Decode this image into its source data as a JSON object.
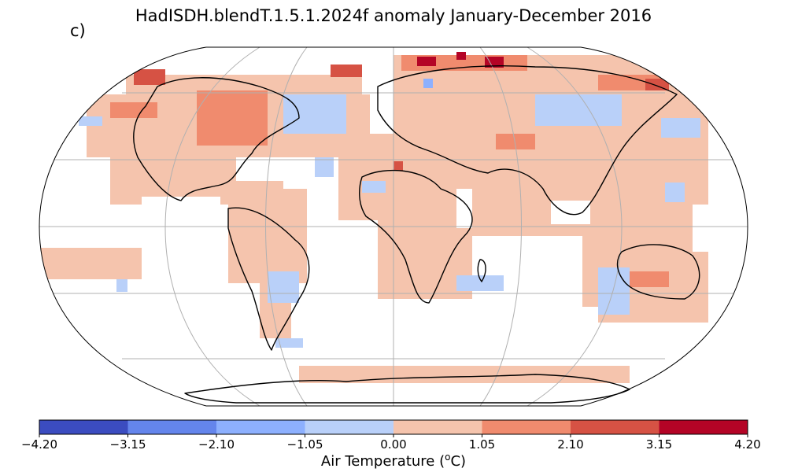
{
  "title": "HadISDH.blendT.1.5.1.2024f anomaly January-December 2016",
  "panel_label": "c)",
  "colorbar": {
    "label_main": "Air Temperature (",
    "label_sup": "o",
    "label_unit": "C)",
    "ticks": [
      "−4.20",
      "−3.15",
      "−2.10",
      "−1.05",
      "0.00",
      "1.05",
      "2.10",
      "3.15",
      "4.20"
    ],
    "tick_values": [
      -4.2,
      -3.15,
      -2.1,
      -1.05,
      0.0,
      1.05,
      2.1,
      3.15,
      4.2
    ],
    "colors": [
      "#3b4cc0",
      "#6485ec",
      "#8db0fe",
      "#b9d0f9",
      "#f5c4ad",
      "#f08b6e",
      "#d65244",
      "#b40426"
    ]
  },
  "map": {
    "projection": "robinson",
    "gridlines": true,
    "coastlines": true
  }
}
